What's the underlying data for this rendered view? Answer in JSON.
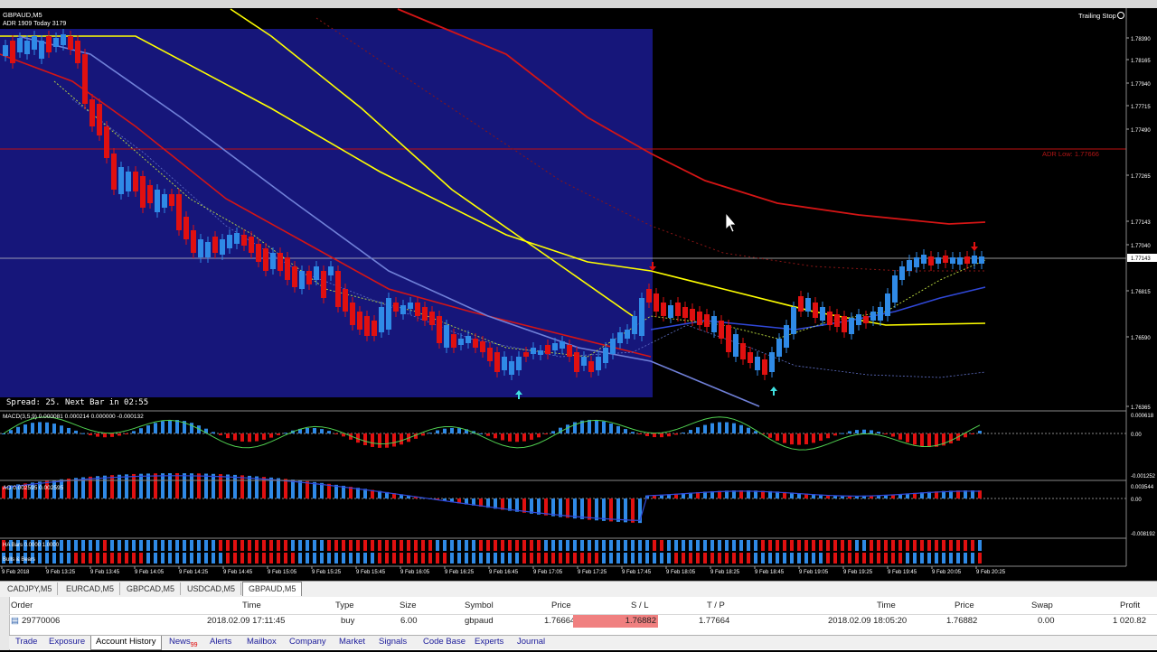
{
  "chart": {
    "symbol_header": "GBPAUD,M5",
    "adr_info": "ADR 1909  Today 3179",
    "trailing_stop": "Trailing Stop",
    "adr_low_label": "ADR Low: 1.77666",
    "spread_text": "Spread: 25. Next Bar in 02:55",
    "price_axis": [
      "1.78390",
      "1.78165",
      "1.77940",
      "1.77715",
      "1.77490",
      "1.77265",
      "1.77143",
      "1.77040",
      "1.76815",
      "1.76590",
      "1.76365"
    ],
    "current_price": "1.77143",
    "time_axis": [
      "9 Feb 2018",
      "9 Feb 13:25",
      "9 Feb 13:45",
      "9 Feb 14:05",
      "9 Feb 14:25",
      "9 Feb 14:45",
      "9 Feb 15:05",
      "9 Feb 15:25",
      "9 Feb 15:45",
      "9 Feb 16:05",
      "9 Feb 16:25",
      "9 Feb 16:45",
      "9 Feb 17:05",
      "9 Feb 17:25",
      "9 Feb 17:45",
      "9 Feb 18:05",
      "9 Feb 18:25",
      "9 Feb 18:45",
      "9 Feb 19:05",
      "9 Feb 19:25",
      "9 Feb 19:45",
      "9 Feb 20:05",
      "9 Feb 20:25"
    ],
    "macd_label": "MACD(3,5,9) 0.000081 0.000214 0.000000 -0.000132",
    "macd_axis": [
      "0.000618",
      "0.00",
      "-0.001252"
    ],
    "ao_label": "AO 0.002595 0.002595",
    "ao_axis": [
      "0.003544",
      "0.00",
      "-0.008192"
    ],
    "ha_label": "HA Bars 0.0000 1.0000",
    "bulls_label": "Bulls & Bears",
    "colors": {
      "bull": "#2f8ae6",
      "bear": "#e01010",
      "ma_yellow": "#ffff00",
      "ma_red": "#d41515",
      "ma_blue": "#3048d8",
      "ma_lightblue": "#7080d8",
      "green": "#50d050",
      "session_box": "#16167a"
    }
  },
  "symbol_tabs": [
    "CADJPY,M5",
    "EURCAD,M5",
    "GBPCAD,M5",
    "USDCAD,M5",
    "GBPAUD,M5"
  ],
  "active_symbol_tab": "GBPAUD,M5",
  "terminal": {
    "headers": {
      "order": "Order",
      "time": "Time",
      "type": "Type",
      "size": "Size",
      "symbol": "Symbol",
      "price": "Price",
      "sl": "S / L",
      "tp": "T / P",
      "time2": "Time",
      "price2": "Price",
      "swap": "Swap",
      "profit": "Profit"
    },
    "row": {
      "order": "29770006",
      "time": "2018.02.09 17:11:45",
      "type": "buy",
      "size": "6.00",
      "symbol": "gbpaud",
      "price": "1.76664",
      "sl": "1.76882",
      "tp": "1.77664",
      "time2": "2018.02.09 18:05:20",
      "price2": "1.76882",
      "swap": "0.00",
      "profit": "1 020.82"
    },
    "tabs": [
      "Trade",
      "Exposure",
      "Account History",
      "News",
      "Alerts",
      "Mailbox",
      "Company",
      "Market",
      "Signals",
      "Code Base",
      "Experts",
      "Journal"
    ],
    "news_count": "99",
    "active_tab": "Account History"
  }
}
